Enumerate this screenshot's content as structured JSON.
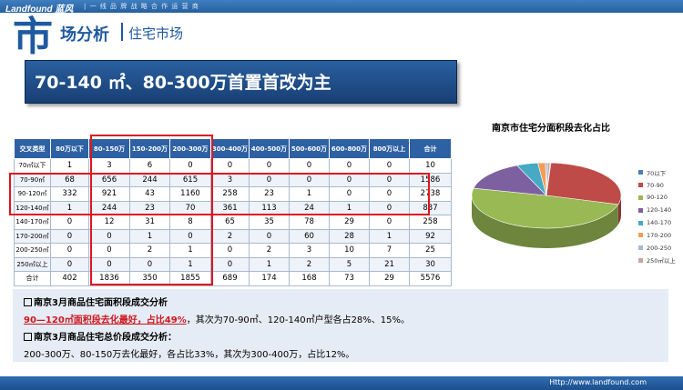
{
  "header": {
    "logo": "Landfound 蓝风",
    "slogan": "| 一 线 品 牌 战 略 合 作 运 营 商"
  },
  "section": {
    "big_char": "市",
    "title": "场分析",
    "subtitle": "住宅市场"
  },
  "banner": {
    "text": "70-140 ㎡、80-300万首置首改为主"
  },
  "table": {
    "headers": [
      "交叉类型",
      "80万以下",
      "80-150万",
      "150-200万",
      "200-300万",
      "300-400万",
      "400-500万",
      "500-600万",
      "600-800万",
      "800万以上",
      "合计"
    ],
    "rows": [
      [
        "70㎡以下",
        "1",
        "3",
        "6",
        "0",
        "0",
        "0",
        "0",
        "0",
        "0",
        "10"
      ],
      [
        "70-90㎡",
        "68",
        "656",
        "244",
        "615",
        "3",
        "0",
        "0",
        "0",
        "0",
        "1586"
      ],
      [
        "90-120㎡",
        "332",
        "921",
        "43",
        "1160",
        "258",
        "23",
        "1",
        "0",
        "0",
        "2738"
      ],
      [
        "120-140㎡",
        "1",
        "244",
        "23",
        "70",
        "361",
        "113",
        "24",
        "1",
        "0",
        "837"
      ],
      [
        "140-170㎡",
        "0",
        "12",
        "31",
        "8",
        "65",
        "35",
        "78",
        "29",
        "0",
        "258"
      ],
      [
        "170-200㎡",
        "0",
        "0",
        "1",
        "0",
        "2",
        "0",
        "60",
        "28",
        "1",
        "92"
      ],
      [
        "200-250㎡",
        "0",
        "0",
        "2",
        "1",
        "0",
        "2",
        "3",
        "10",
        "7",
        "25"
      ],
      [
        "250㎡以上",
        "0",
        "0",
        "0",
        "1",
        "0",
        "1",
        "2",
        "5",
        "21",
        "30"
      ],
      [
        "合计",
        "402",
        "1836",
        "350",
        "1855",
        "689",
        "174",
        "168",
        "73",
        "29",
        "5576"
      ]
    ]
  },
  "chart_data": {
    "type": "pie",
    "title": "南京市住宅分面积段去化占比",
    "categories": [
      "70以下",
      "70-90",
      "90-120",
      "120-140",
      "140-170",
      "170-200",
      "200-250",
      "250㎡以上"
    ],
    "values": [
      10,
      1586,
      2738,
      837,
      258,
      92,
      25,
      30
    ],
    "colors": [
      "#4a7ebb",
      "#be4b48",
      "#98b954",
      "#7d60a0",
      "#46aac5",
      "#f59d56",
      "#a9b8d4",
      "#c9a2a1"
    ],
    "legend": "right"
  },
  "notes": {
    "area_heading": "南京3月商品住宅面积段成交分析",
    "area_highlight": "90—120㎡面积段去化最好，占比49%",
    "area_rest": "，其次为70-90㎡、120-140㎡户型各占28%、15%。",
    "price_heading": "南京3月商品住宅总价段成交分析：",
    "price_text": "200-300万、80-150万去化最好，各占比33%，其次为300-400万，占比12%。"
  },
  "footer": {
    "url": "Http://www.landfound.com"
  }
}
